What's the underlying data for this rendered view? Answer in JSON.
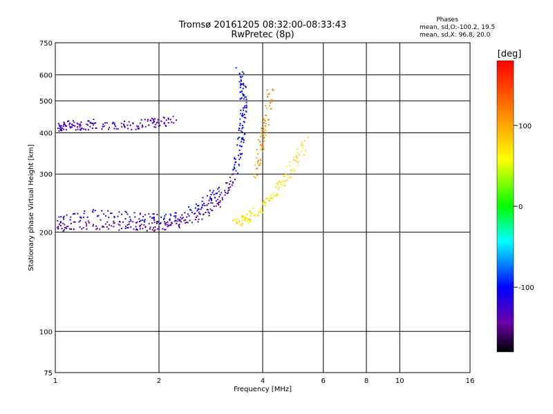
{
  "chart_data": {
    "type": "scatter",
    "title": "Tromsø 20161205 08:32:00-08:33:43",
    "subtitle": "RwPretec (8p)",
    "xlabel": "Frequency [MHz]",
    "ylabel": "Stationary phase Virtual Height [km]",
    "x_scale": "log",
    "y_scale": "log",
    "xlim": [
      1,
      16
    ],
    "ylim": [
      75,
      750
    ],
    "x_ticks": [
      1,
      2,
      4,
      6,
      8,
      10,
      16
    ],
    "y_ticks": [
      75,
      100,
      200,
      300,
      400,
      500,
      600,
      750
    ],
    "grid": true,
    "colorbar": {
      "label": "[deg]",
      "range": [
        -180,
        180
      ],
      "ticks": [
        100,
        0,
        -100
      ]
    },
    "info": {
      "heading": "Phases",
      "line_o": "mean, sd,O:-100.2, 19.5",
      "line_x": "mean, sd,X:  96.8, 20.0"
    },
    "traces": [
      {
        "x": [
          1.0,
          1.05,
          1.1,
          1.2,
          1.3,
          1.5,
          1.7,
          1.9,
          2.0,
          2.2
        ],
        "y": [
          420,
          418,
          425,
          422,
          428,
          420,
          425,
          430,
          432,
          440
        ],
        "phase": -130
      },
      {
        "x": [
          1.0,
          1.1,
          1.3,
          1.5,
          1.7,
          1.9,
          2.1,
          2.3,
          2.6,
          2.9,
          3.1,
          3.3
        ],
        "y": [
          205,
          210,
          212,
          210,
          209,
          208,
          210,
          215,
          225,
          240,
          265,
          300
        ],
        "phase": -140
      },
      {
        "x": [
          1.0,
          1.2,
          1.5,
          1.8,
          2.0,
          2.3,
          2.6,
          2.8,
          3.0
        ],
        "y": [
          220,
          230,
          225,
          222,
          220,
          225,
          240,
          255,
          270
        ],
        "phase": -110
      },
      {
        "x": [
          3.3,
          3.4,
          3.45,
          3.5,
          3.5,
          3.5,
          3.4
        ],
        "y": [
          300,
          350,
          400,
          450,
          500,
          560,
          620
        ],
        "phase": -105
      },
      {
        "x": [
          3.3,
          3.5,
          3.7,
          4.0,
          4.3,
          4.6,
          5.0,
          5.3
        ],
        "y": [
          215,
          218,
          225,
          240,
          262,
          290,
          330,
          380
        ],
        "phase": 70
      },
      {
        "x": [
          3.8,
          3.9,
          4.0,
          4.1,
          4.2
        ],
        "y": [
          300,
          350,
          400,
          450,
          550
        ],
        "phase": 110
      }
    ]
  }
}
